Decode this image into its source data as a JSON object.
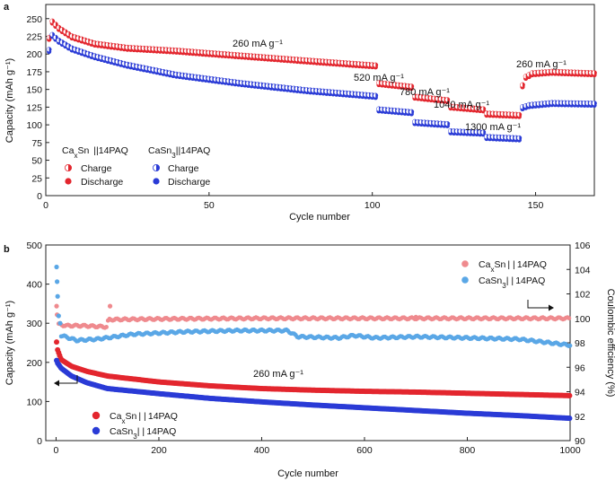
{
  "chart_data": [
    {
      "type": "scatter",
      "panel_label": "a",
      "xlabel": "Cycle number",
      "ylabel": "Capacity (mAh g⁻¹)",
      "xlim": [
        0,
        168
      ],
      "ylim": [
        0,
        270
      ],
      "xticks": [
        0,
        50,
        100,
        150
      ],
      "yticks": [
        0,
        25,
        50,
        75,
        100,
        125,
        150,
        175,
        200,
        225,
        250
      ],
      "grid": false,
      "legend_groups": [
        {
          "title_parts": [
            "Ca",
            "x",
            "Sn  ||14PAQ"
          ],
          "entries": [
            "Charge",
            "Discharge"
          ],
          "color": "#e3262e"
        },
        {
          "title_parts": [
            "CaSn",
            "3",
            "||14PAQ"
          ],
          "entries": [
            "Charge",
            "Discharge"
          ],
          "color": "#2a3bd6"
        }
      ],
      "annotations": [
        "260 mA g⁻¹",
        "520 mA g⁻¹",
        "780 mA g⁻¹",
        "1040 mA g⁻¹",
        "1300 mA g⁻¹",
        "260 mA g⁻¹"
      ],
      "series": [
        {
          "name": "CaxSn||14PAQ",
          "color": "#e3262e",
          "segments": [
            {
              "x_from": 1,
              "x_to": 101,
              "points": [
                [
                  1,
                  222
                ],
                [
                  2,
                  245
                ],
                [
                  4,
                  236
                ],
                [
                  8,
                  224
                ],
                [
                  15,
                  214
                ],
                [
                  25,
                  208
                ],
                [
                  40,
                  204
                ],
                [
                  60,
                  197
                ],
                [
                  80,
                  190
                ],
                [
                  101,
                  183
                ]
              ]
            },
            {
              "x_from": 102,
              "x_to": 112,
              "points": [
                [
                  102,
                  158
                ],
                [
                  112,
                  153
                ]
              ]
            },
            {
              "x_from": 113,
              "x_to": 123,
              "points": [
                [
                  113,
                  139
                ],
                [
                  123,
                  134
                ]
              ]
            },
            {
              "x_from": 124,
              "x_to": 134,
              "points": [
                [
                  124,
                  125
                ],
                [
                  134,
                  121
                ]
              ]
            },
            {
              "x_from": 135,
              "x_to": 145,
              "points": [
                [
                  135,
                  115
                ],
                [
                  145,
                  113
                ]
              ]
            },
            {
              "x_from": 146,
              "x_to": 168,
              "points": [
                [
                  146,
                  155
                ],
                [
                  147,
                  167
                ],
                [
                  149,
                  172
                ],
                [
                  155,
                  174
                ],
                [
                  168,
                  172
                ]
              ]
            }
          ]
        },
        {
          "name": "CaSn3||14PAQ",
          "color": "#2a3bd6",
          "segments": [
            {
              "x_from": 1,
              "x_to": 101,
              "points": [
                [
                  1,
                  205
                ],
                [
                  2,
                  226
                ],
                [
                  4,
                  218
                ],
                [
                  8,
                  207
                ],
                [
                  15,
                  196
                ],
                [
                  25,
                  184
                ],
                [
                  40,
                  170
                ],
                [
                  60,
                  158
                ],
                [
                  80,
                  148
                ],
                [
                  101,
                  140
                ]
              ]
            },
            {
              "x_from": 102,
              "x_to": 112,
              "points": [
                [
                  102,
                  121
                ],
                [
                  112,
                  117
                ]
              ]
            },
            {
              "x_from": 113,
              "x_to": 123,
              "points": [
                [
                  113,
                  103
                ],
                [
                  123,
                  100
                ]
              ]
            },
            {
              "x_from": 124,
              "x_to": 134,
              "points": [
                [
                  124,
                  90
                ],
                [
                  134,
                  88
                ]
              ]
            },
            {
              "x_from": 135,
              "x_to": 145,
              "points": [
                [
                  135,
                  82
                ],
                [
                  145,
                  80
                ]
              ]
            },
            {
              "x_from": 146,
              "x_to": 168,
              "points": [
                [
                  146,
                  124
                ],
                [
                  148,
                  127
                ],
                [
                  155,
                  130
                ],
                [
                  168,
                  129
                ]
              ]
            }
          ]
        }
      ]
    },
    {
      "type": "scatter",
      "panel_label": "b",
      "xlabel": "Cycle number",
      "ylabel": "Capacity (mAh g⁻¹)",
      "y2label": "Coulombic efficiency (%)",
      "xlim": [
        -20,
        1000
      ],
      "ylim": [
        0,
        500
      ],
      "y2lim": [
        90,
        106
      ],
      "xticks": [
        0,
        200,
        400,
        600,
        800,
        1000
      ],
      "yticks": [
        0,
        100,
        200,
        300,
        400,
        500
      ],
      "y2ticks": [
        90,
        92,
        94,
        96,
        98,
        100,
        102,
        104,
        106
      ],
      "grid": false,
      "annotation": "260 mA g⁻¹",
      "legend_capacity": [
        {
          "parts": [
            "Ca",
            "x",
            "Sn | | 14PAQ"
          ],
          "color": "#e3262e"
        },
        {
          "parts": [
            "CaSn",
            "3",
            "| | 14PAQ"
          ],
          "color": "#2a3bd6"
        }
      ],
      "legend_ce": [
        {
          "parts": [
            "Ca",
            "x",
            "Sn | | 14PAQ"
          ],
          "color": "#ef8a8e"
        },
        {
          "parts": [
            "CaSn",
            "3",
            "| | 14PAQ"
          ],
          "color": "#5aa7e6"
        }
      ],
      "series": [
        {
          "name": "CaxSn||14PAQ capacity",
          "axis": "left",
          "color": "#e3262e",
          "points": [
            [
              1,
              252
            ],
            [
              3,
              232
            ],
            [
              10,
              207
            ],
            [
              30,
              190
            ],
            [
              60,
              177
            ],
            [
              100,
              165
            ],
            [
              200,
              150
            ],
            [
              300,
              140
            ],
            [
              400,
              133
            ],
            [
              500,
              129
            ],
            [
              600,
              126
            ],
            [
              700,
              124
            ],
            [
              800,
              121
            ],
            [
              900,
              118
            ],
            [
              1000,
              115
            ]
          ]
        },
        {
          "name": "CaSn3||14PAQ capacity",
          "axis": "left",
          "color": "#2a3bd6",
          "points": [
            [
              1,
              205
            ],
            [
              3,
              198
            ],
            [
              10,
              185
            ],
            [
              30,
              165
            ],
            [
              60,
              148
            ],
            [
              100,
              133
            ],
            [
              200,
              120
            ],
            [
              300,
              108
            ],
            [
              400,
              99
            ],
            [
              500,
              91
            ],
            [
              600,
              84
            ],
            [
              700,
              77
            ],
            [
              800,
              70
            ],
            [
              900,
              64
            ],
            [
              1000,
              57
            ]
          ]
        },
        {
          "name": "CaxSn||14PAQ CE",
          "axis": "right",
          "color": "#ef8a8e",
          "points": [
            [
              5,
              99.5
            ],
            [
              20,
              99.4
            ],
            [
              50,
              99.4
            ],
            [
              98,
              99.3
            ],
            [
              102,
              99.9
            ],
            [
              200,
              99.95
            ],
            [
              400,
              100.0
            ],
            [
              600,
              100.0
            ],
            [
              800,
              100.0
            ],
            [
              1000,
              100.0
            ]
          ],
          "outliers": [
            [
              1,
              101.0
            ],
            [
              2,
              100.3
            ],
            [
              105,
              101.0
            ],
            [
              700,
              100.1
            ]
          ]
        },
        {
          "name": "CaSn3||14PAQ CE",
          "axis": "right",
          "color": "#5aa7e6",
          "points": [
            [
              10,
              98.6
            ],
            [
              40,
              98.2
            ],
            [
              80,
              98.3
            ],
            [
              150,
              98.7
            ],
            [
              250,
              98.9
            ],
            [
              350,
              99.0
            ],
            [
              450,
              99.0
            ],
            [
              470,
              98.5
            ],
            [
              550,
              98.4
            ],
            [
              580,
              98.6
            ],
            [
              620,
              98.4
            ],
            [
              700,
              98.5
            ],
            [
              800,
              98.4
            ],
            [
              900,
              98.3
            ],
            [
              1000,
              97.8
            ]
          ],
          "outliers": [
            [
              1,
              104.2
            ],
            [
              2,
              103.0
            ],
            [
              3,
              101.8
            ],
            [
              5,
              100.2
            ],
            [
              8,
              99.6
            ]
          ]
        }
      ]
    }
  ]
}
